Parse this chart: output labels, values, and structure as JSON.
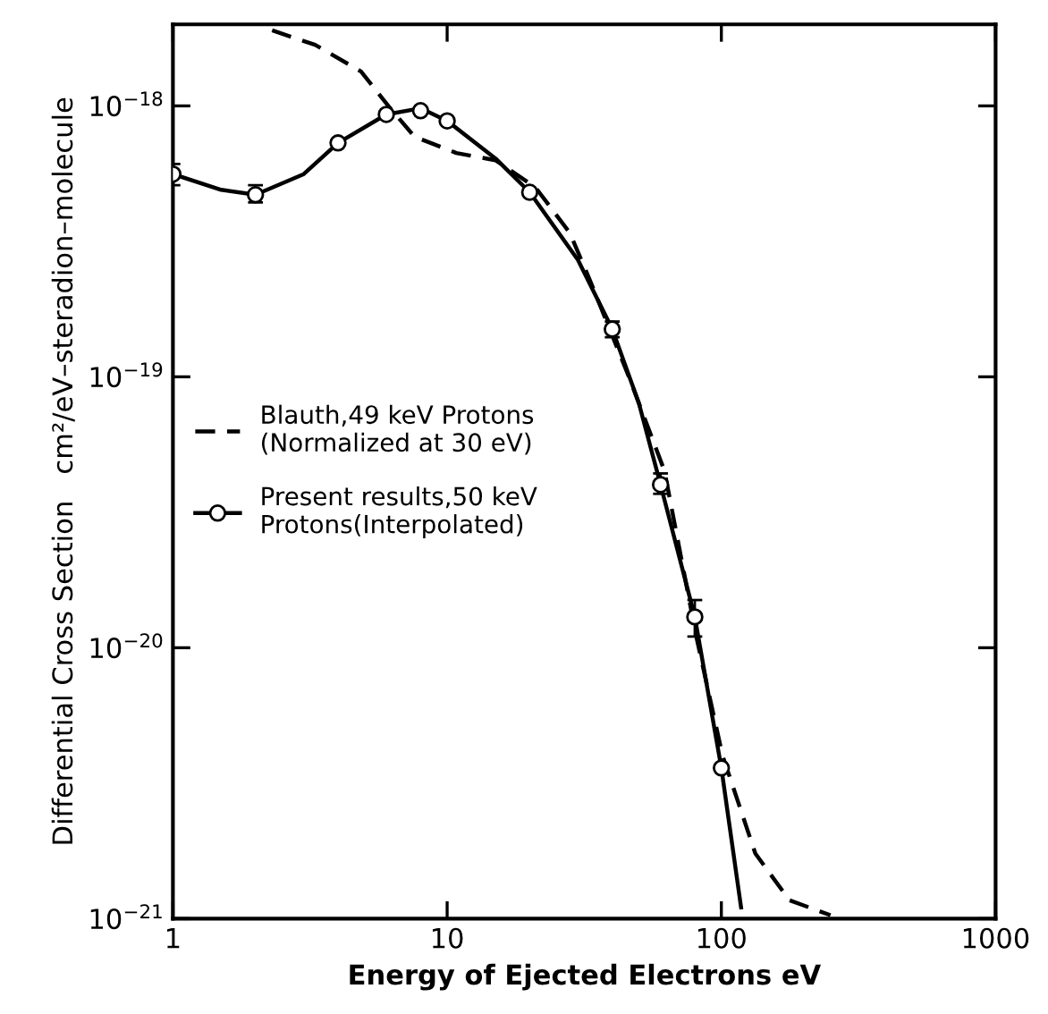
{
  "chart_data": {
    "type": "line",
    "xlabel": "Energy of Ejected Electrons eV",
    "ylabel": "Differential Cross Section   cm²/eV–steradion–molecule",
    "log": "xy",
    "xlim": [
      1,
      1000
    ],
    "xticks": [
      1,
      10,
      100,
      1000
    ],
    "ylim": [
      1e-21,
      2e-18
    ],
    "yticks": [
      {
        "value": 1e-21,
        "label": "10$^{−21}$"
      },
      {
        "value": 1e-20,
        "label": "10$^{−20}$"
      },
      {
        "value": 1e-19,
        "label": "10$^{−19}$"
      },
      {
        "value": 1e-18,
        "label": "10$^{−18}$"
      }
    ],
    "grid": false,
    "legend": "left",
    "series": [
      {
        "name": "Blauth,49 keV Protons\n(Normalized at 30 eV)",
        "line_style": "dashed",
        "color": "#000000",
        "x": [
          2.3,
          3.3,
          4.85,
          6.1,
          7.6,
          10.8,
          15,
          21,
          28,
          33,
          46,
          62,
          81,
          101,
          133,
          177,
          250
        ],
        "values": [
          1.9e-18,
          1.68e-18,
          1.34e-18,
          1e-18,
          7.7e-19,
          6.7e-19,
          6.3e-19,
          5e-19,
          3.4e-19,
          2.3e-19,
          1e-19,
          4.5e-20,
          1.1e-20,
          4e-21,
          1.74e-21,
          1.17e-21,
          1.03e-21
        ]
      },
      {
        "name": "Present results,50 keV\nProtons(Interpolated)",
        "type": "scatter",
        "marker": "circle",
        "color": "#000000",
        "x": [
          1,
          2,
          4,
          6,
          8,
          10,
          20,
          40,
          60,
          80,
          100
        ],
        "values": [
          5.6e-19,
          4.7e-19,
          7.3e-19,
          9.3e-19,
          9.6e-19,
          8.8e-19,
          4.8e-19,
          1.5e-19,
          4e-20,
          1.3e-20,
          3.6e-21
        ],
        "errors": [
          [
            5.1e-19,
            6.1e-19
          ],
          [
            4.4e-19,
            5.1e-19
          ],
          null,
          null,
          null,
          null,
          null,
          [
            1.4e-19,
            1.6e-19
          ],
          [
            3.7e-20,
            4.4e-20
          ],
          [
            1.1e-20,
            1.5e-20
          ],
          null
        ]
      },
      {
        "line_style": "solid",
        "color": "#000000",
        "x": [
          1,
          1.5,
          2,
          3,
          4,
          6,
          8,
          10,
          15,
          20,
          30,
          40,
          50,
          60,
          80,
          100,
          118
        ],
        "values": [
          5.6e-19,
          4.9e-19,
          4.7e-19,
          5.6e-19,
          7.3e-19,
          9.3e-19,
          9.8e-19,
          8.8e-19,
          6.4e-19,
          4.8e-19,
          2.7e-19,
          1.5e-19,
          8e-20,
          4e-20,
          1.3e-20,
          3.6e-21,
          1.1e-21
        ]
      }
    ]
  }
}
